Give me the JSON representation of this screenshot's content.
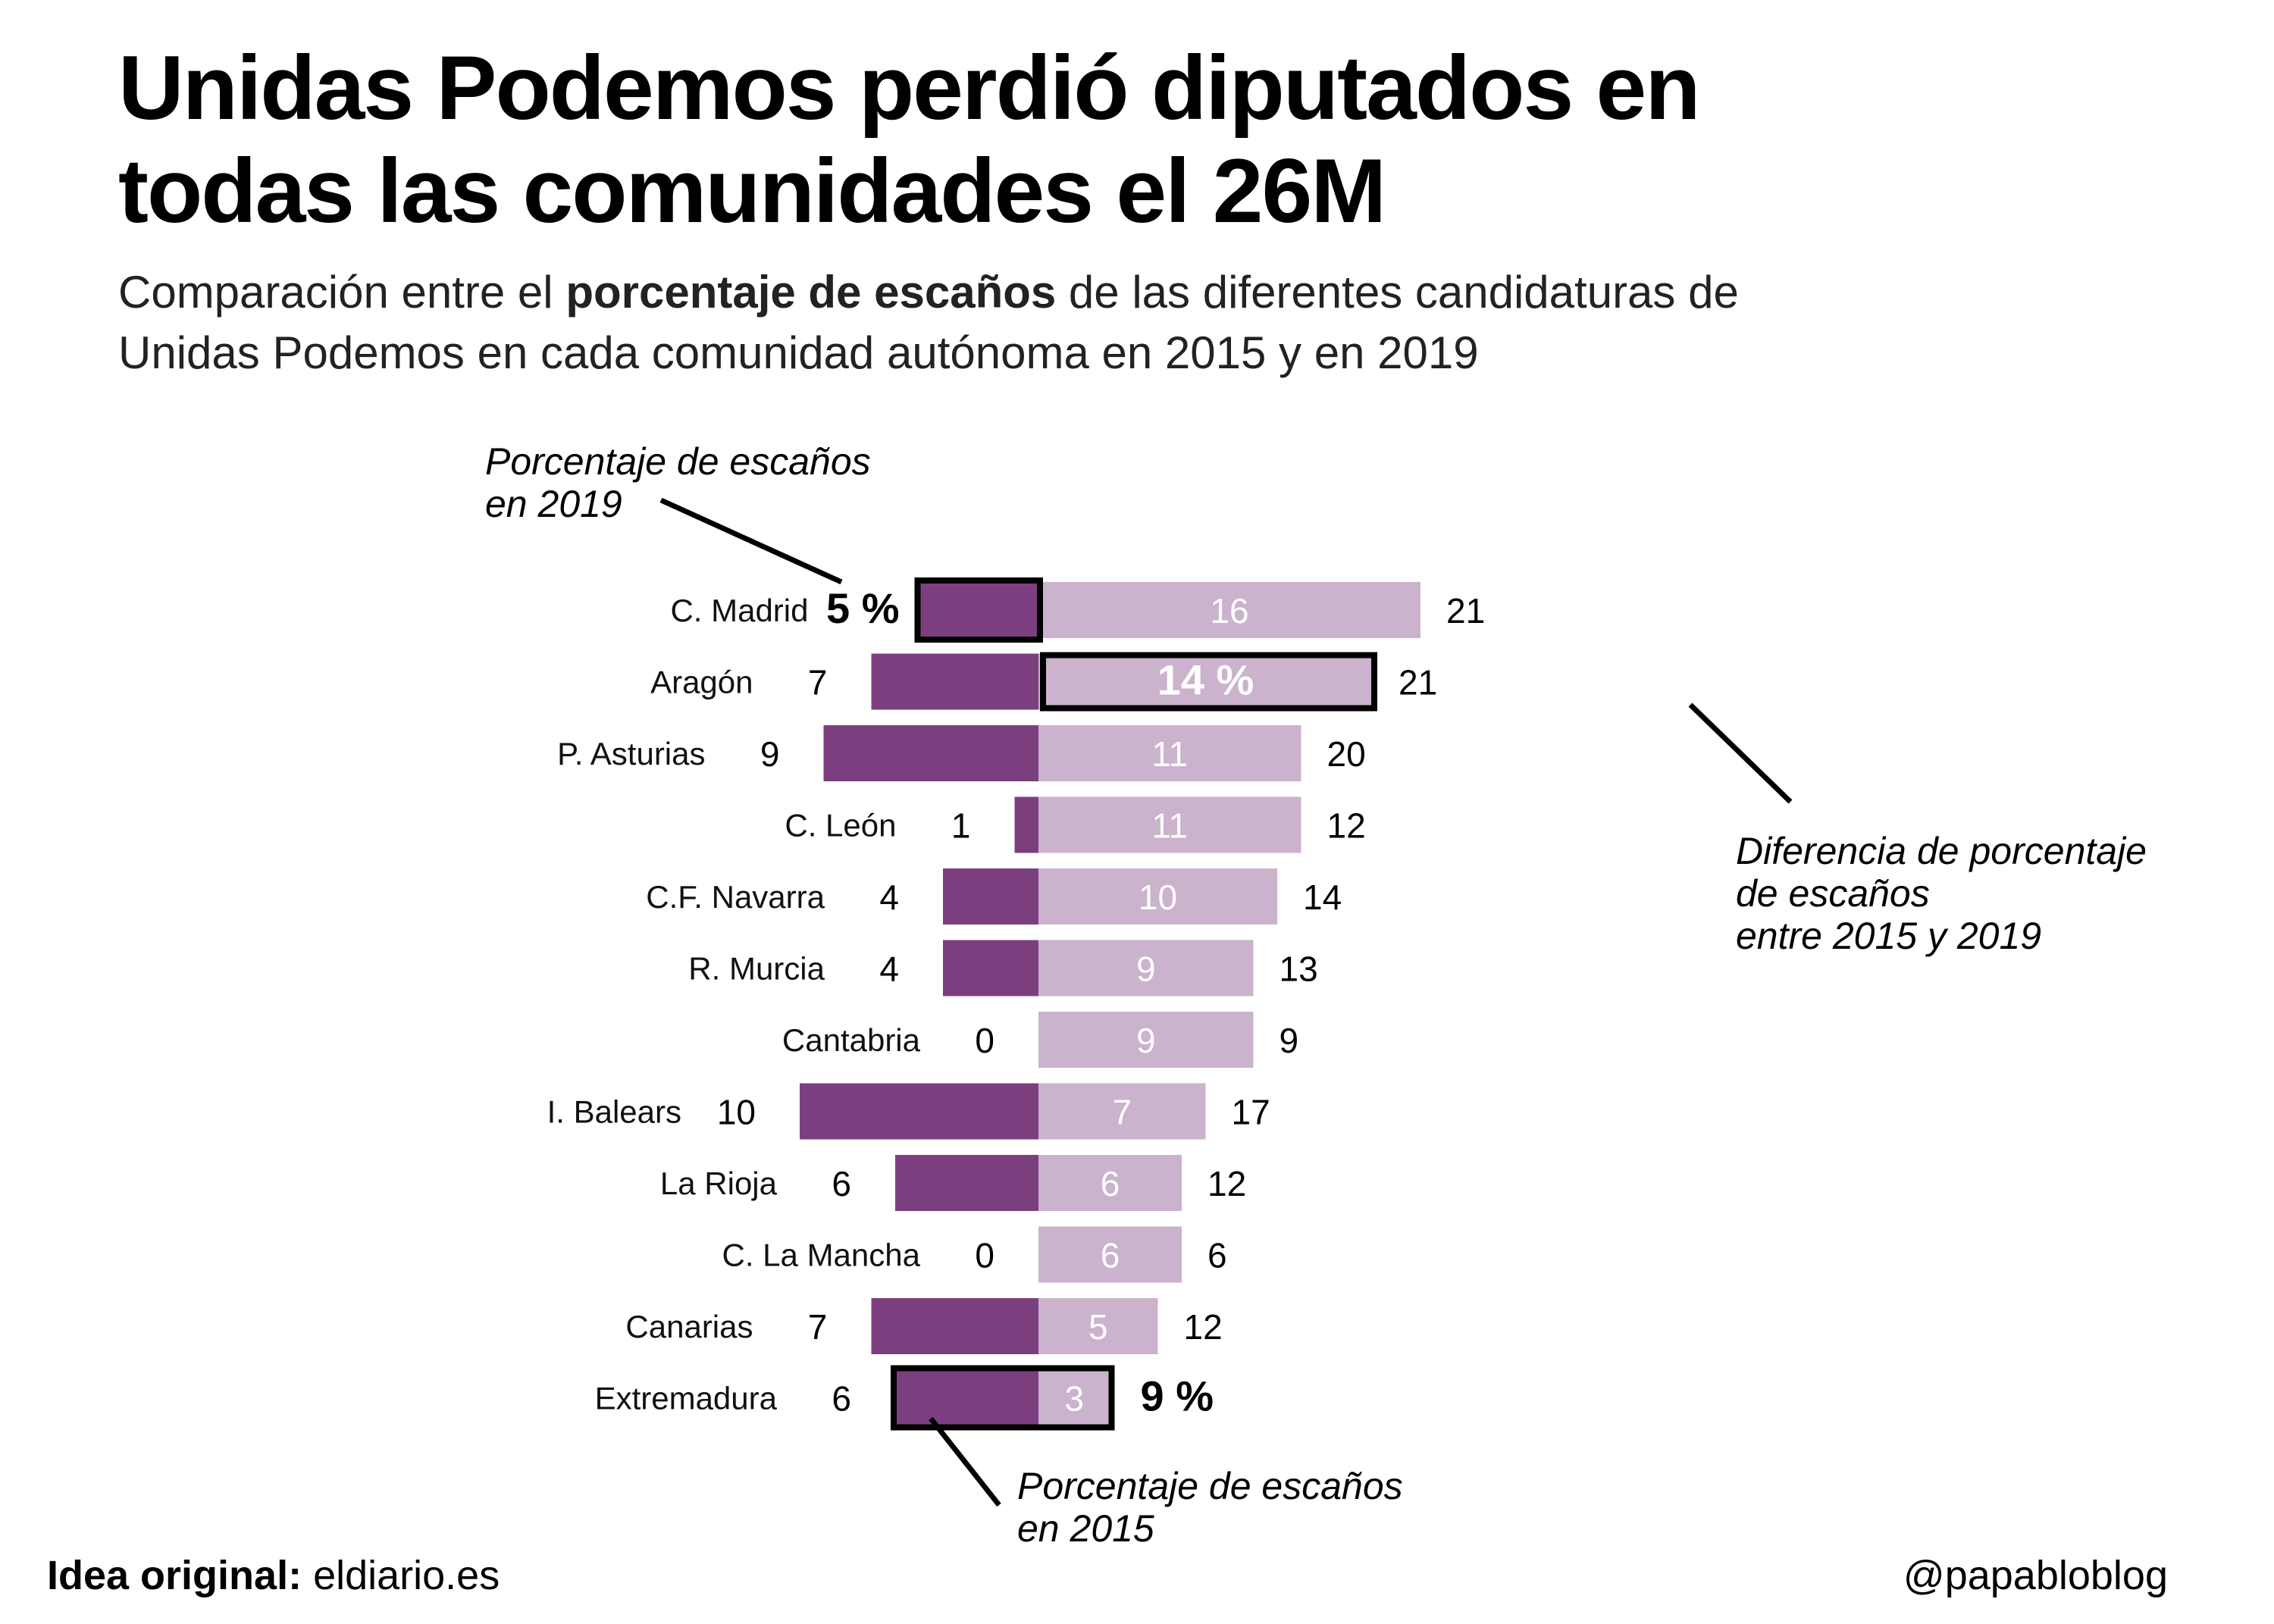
{
  "title": "Unidas Podemos perdió diputados en todas las comunidades el 26M",
  "subtitle": {
    "before": "Comparación entre el ",
    "bold": "porcentaje de escaños",
    "after": " de las diferentes candidaturas de Unidas Podemos en cada comunidad autónoma en 2015 y en 2019"
  },
  "annotations": {
    "pct_2019_line1": "Porcentaje de escaños",
    "pct_2019_line2": "en 2019",
    "diff_line1": "Diferencia de porcentaje",
    "diff_line2": "de escaños",
    "diff_line3": "entre 2015 y 2019",
    "pct_2015_line1": "Porcentaje de escaños",
    "pct_2015_line2": "en 2015"
  },
  "footer": {
    "idea_label": "Idea original:",
    "idea_source": "eldiario.es",
    "author": "@papabloblog"
  },
  "colors": {
    "dark_purple": "#7b3f80",
    "light_purple": "#cbb2cd",
    "highlight_border": "#000000"
  },
  "chart_data": {
    "type": "bar",
    "orientation": "horizontal-diverging",
    "categories": [
      "C. Madrid",
      "Aragón",
      "P. Asturias",
      "C. León",
      "C.F. Navarra",
      "R. Murcia",
      "Cantabria",
      "I. Balears",
      "La Rioja",
      "C. La Mancha",
      "Canarias",
      "Extremadura"
    ],
    "series": [
      {
        "name": "Porcentaje de escaños en 2019",
        "values": [
          5,
          7,
          9,
          1,
          4,
          4,
          0,
          10,
          6,
          0,
          7,
          6
        ]
      },
      {
        "name": "Diferencia de porcentaje de escaños entre 2015 y 2019",
        "values": [
          16,
          14,
          11,
          11,
          10,
          9,
          9,
          7,
          6,
          6,
          5,
          3
        ]
      },
      {
        "name": "Porcentaje de escaños en 2015",
        "values": [
          21,
          21,
          20,
          12,
          14,
          13,
          9,
          17,
          12,
          6,
          12,
          9
        ]
      }
    ],
    "value_labels": {
      "pct_2019": [
        "5 %",
        "7",
        "9",
        "1",
        "4",
        "4",
        "0",
        "10",
        "6",
        "0",
        "7",
        "6"
      ],
      "difference": [
        "16",
        "14 %",
        "11",
        "11",
        "10",
        "9",
        "9",
        "7",
        "6",
        "6",
        "5",
        "3"
      ],
      "pct_2015": [
        "21",
        "21",
        "20",
        "12",
        "14",
        "13",
        "9",
        "17",
        "12",
        "6",
        "12",
        "9 %"
      ]
    },
    "highlights": [
      {
        "category": "C. Madrid",
        "part": "2019"
      },
      {
        "category": "Aragón",
        "part": "difference"
      },
      {
        "category": "Extremadura",
        "part": "2015"
      }
    ],
    "grid": false,
    "legend": "none"
  }
}
